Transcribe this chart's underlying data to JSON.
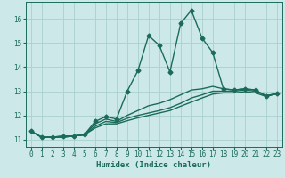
{
  "title": "",
  "xlabel": "Humidex (Indice chaleur)",
  "ylabel": "",
  "background_color": "#cce8e8",
  "grid_color": "#aacfcf",
  "line_color": "#1a6b5a",
  "x_values": [
    0,
    1,
    2,
    3,
    4,
    5,
    6,
    7,
    8,
    9,
    10,
    11,
    12,
    13,
    14,
    15,
    16,
    17,
    18,
    19,
    20,
    21,
    22,
    23
  ],
  "series": [
    [
      11.35,
      11.1,
      11.1,
      11.15,
      11.15,
      11.2,
      11.75,
      11.95,
      11.85,
      13.0,
      13.85,
      15.3,
      14.9,
      13.8,
      15.8,
      16.35,
      15.2,
      14.6,
      13.1,
      13.05,
      13.1,
      13.05,
      12.8,
      12.9
    ],
    [
      11.35,
      11.1,
      11.1,
      11.15,
      11.15,
      11.2,
      11.65,
      11.85,
      11.75,
      12.0,
      12.2,
      12.4,
      12.5,
      12.65,
      12.85,
      13.05,
      13.1,
      13.2,
      13.1,
      13.05,
      13.1,
      13.05,
      12.8,
      12.9
    ],
    [
      11.35,
      11.1,
      11.1,
      11.1,
      11.15,
      11.2,
      11.55,
      11.75,
      11.7,
      11.88,
      12.0,
      12.1,
      12.2,
      12.32,
      12.5,
      12.72,
      12.85,
      13.0,
      13.0,
      13.0,
      13.05,
      13.0,
      12.82,
      12.9
    ],
    [
      11.35,
      11.1,
      11.1,
      11.1,
      11.15,
      11.2,
      11.48,
      11.65,
      11.65,
      11.78,
      11.9,
      12.0,
      12.1,
      12.2,
      12.38,
      12.55,
      12.72,
      12.88,
      12.93,
      12.93,
      12.98,
      12.93,
      12.78,
      12.9
    ]
  ],
  "ylim": [
    10.7,
    16.7
  ],
  "xlim": [
    -0.5,
    23.5
  ],
  "yticks": [
    11,
    12,
    13,
    14,
    15,
    16
  ],
  "xticks": [
    0,
    1,
    2,
    3,
    4,
    5,
    6,
    7,
    8,
    9,
    10,
    11,
    12,
    13,
    14,
    15,
    16,
    17,
    18,
    19,
    20,
    21,
    22,
    23
  ],
  "marker": "D",
  "markersize": 2.5,
  "linewidth": 1.0,
  "fontsize_label": 6.5,
  "fontsize_tick": 5.5
}
